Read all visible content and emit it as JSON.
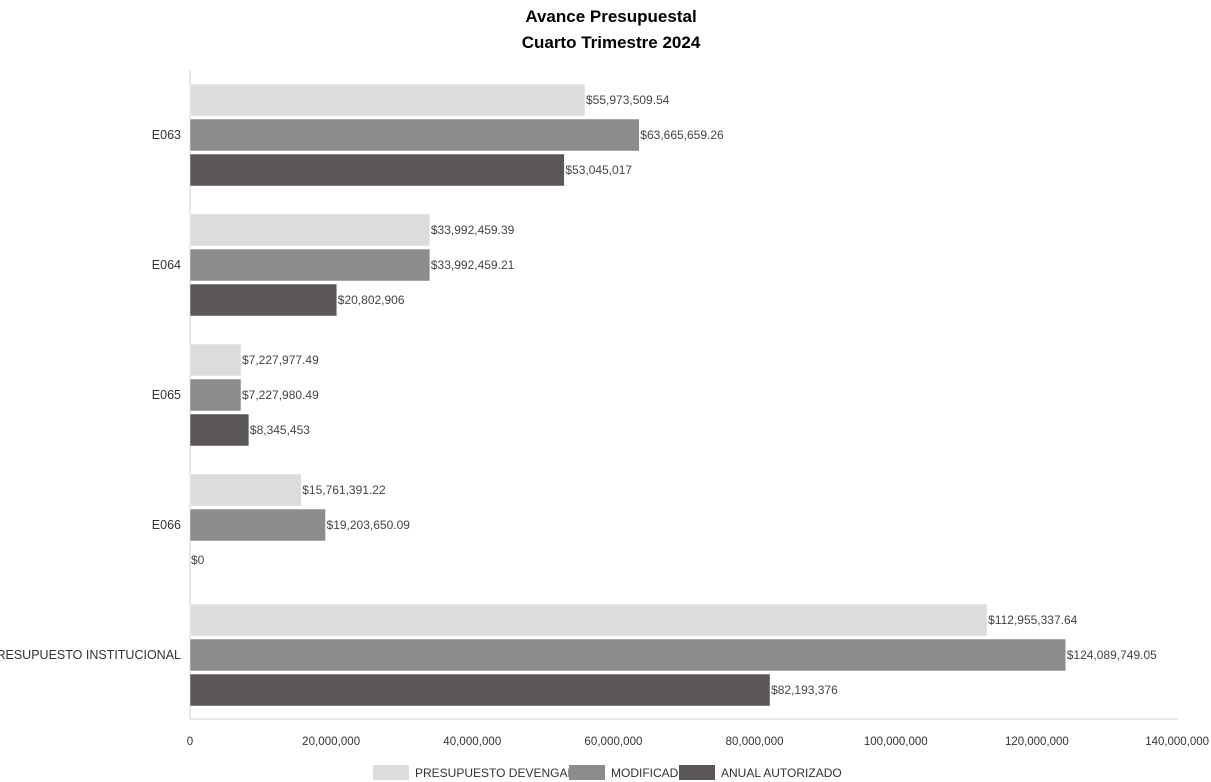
{
  "chart_data": {
    "type": "bar",
    "orientation": "horizontal",
    "title": "Avance Presupuestal",
    "subtitle": "Cuarto Trimestre 2024",
    "categories": [
      "E063",
      "E064",
      "E065",
      "E066",
      "PRESUPUESTO INSTITUCIONAL"
    ],
    "series": [
      {
        "name": "PRESUPUESTO DEVENGADO",
        "color": "#dcdcdc",
        "values": [
          55973509.54,
          33992459.39,
          7227977.49,
          15761391.22,
          112955337.64
        ],
        "labels": [
          "$55,973,509.54",
          "$33,992,459.39",
          "$7,227,977.49",
          "$15,761,391.22",
          "$112,955,337.64"
        ]
      },
      {
        "name": "MODIFICADO",
        "color": "#8c8c8c",
        "values": [
          63665659.26,
          33992459.21,
          7227980.49,
          19203650.09,
          124089749.05
        ],
        "labels": [
          "$63,665,659.26",
          "$33,992,459.21",
          "$7,227,980.49",
          "$19,203,650.09",
          "$124,089,749.05"
        ]
      },
      {
        "name": "ANUAL AUTORIZADO",
        "color": "#5a5756",
        "values": [
          53045017,
          20802906,
          8345453,
          0,
          82193376
        ],
        "labels": [
          "$53,045,017",
          "$20,802,906",
          "$8,345,453",
          "$0",
          "$82,193,376"
        ]
      }
    ],
    "x_ticks": [
      "0",
      "20,000,000",
      "40,000,000",
      "60,000,000",
      "80,000,000",
      "100,000,000",
      "120,000,000",
      "140,000,000"
    ],
    "xlim": [
      0,
      140000000
    ],
    "grid": false,
    "legend_position": "bottom"
  }
}
